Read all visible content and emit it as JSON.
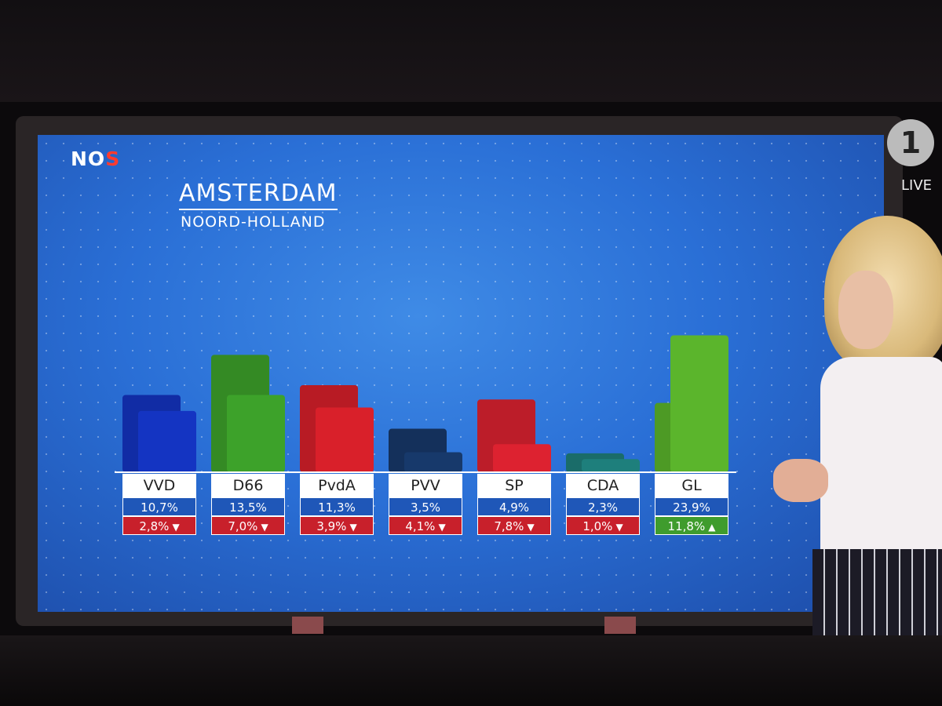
{
  "broadcaster": {
    "logo_main": "NO",
    "logo_accent": "S"
  },
  "heading": {
    "city": "AMSTERDAM",
    "province": "NOORD-HOLLAND"
  },
  "channel": {
    "logo": "1",
    "live": "LIVE"
  },
  "colors": {
    "VVD": "#1434c2",
    "D66": "#3da22a",
    "PvdA": "#d9202a",
    "PVV": "#17396b",
    "SP": "#dd2230",
    "CDA": "#1e7f7c",
    "GL": "#5bb52c",
    "pct_box": "#1f57b8",
    "down": "#c8202b",
    "up": "#3f9c2d"
  },
  "chart_data": {
    "type": "bar",
    "categories": [
      "VVD",
      "D66",
      "PvdA",
      "PVV",
      "SP",
      "CDA",
      "GL"
    ],
    "series": [
      {
        "values": [
          13.5,
          20.5,
          15.2,
          7.6,
          12.7,
          3.3,
          12.1
        ]
      },
      {
        "values": [
          10.7,
          13.5,
          11.3,
          3.5,
          4.9,
          2.3,
          23.9
        ]
      }
    ],
    "labels": [
      {
        "party": "VVD",
        "pct": "10,7%",
        "delta": "2,8%",
        "direction": "down"
      },
      {
        "party": "D66",
        "pct": "13,5%",
        "delta": "7,0%",
        "direction": "down"
      },
      {
        "party": "PvdA",
        "pct": "11,3%",
        "delta": "3,9%",
        "direction": "down"
      },
      {
        "party": "PVV",
        "pct": "3,5%",
        "delta": "4,1%",
        "direction": "down"
      },
      {
        "party": "SP",
        "pct": "4,9%",
        "delta": "7,8%",
        "direction": "down"
      },
      {
        "party": "CDA",
        "pct": "2,3%",
        "delta": "1,0%",
        "direction": "down"
      },
      {
        "party": "GL",
        "pct": "23,9%",
        "delta": "11,8%",
        "direction": "up"
      }
    ],
    "ylim": [
      0,
      25
    ],
    "grid": "dots",
    "legend": "none"
  }
}
